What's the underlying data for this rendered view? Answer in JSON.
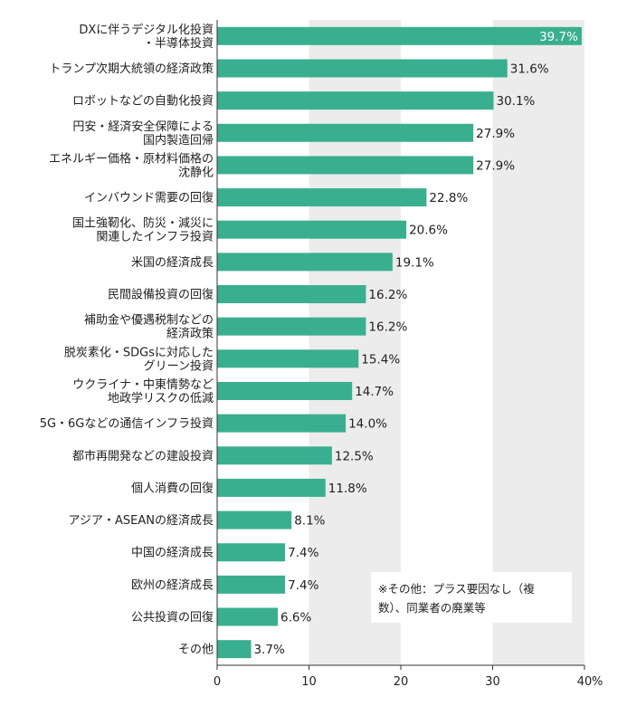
{
  "chart_data": {
    "type": "bar",
    "orientation": "horizontal",
    "categories": [
      [
        "DXに伴うデジタル化投資",
        "・半導体投資"
      ],
      [
        "トランプ次期大統領の経済政策"
      ],
      [
        "ロボットなどの自動化投資"
      ],
      [
        "円安・経済安全保障による",
        "国内製造回帰"
      ],
      [
        "エネルギー価格・原材料価格の",
        "沈静化"
      ],
      [
        "インバウンド需要の回復"
      ],
      [
        "国土強靭化、防災・減災に",
        "関連したインフラ投資"
      ],
      [
        "米国の経済成長"
      ],
      [
        "民間設備投資の回復"
      ],
      [
        "補助金や優遇税制などの",
        "経済政策"
      ],
      [
        "脱炭素化・SDGsに対応した",
        "グリーン投資"
      ],
      [
        "ウクライナ・中東情勢など",
        "地政学リスクの低減"
      ],
      [
        "5G・6Gなどの通信インフラ投資"
      ],
      [
        "都市再開発などの建設投資"
      ],
      [
        "個人消費の回復"
      ],
      [
        "アジア・ASEANの経済成長"
      ],
      [
        "中国の経済成長"
      ],
      [
        "欧州の経済成長"
      ],
      [
        "公共投資の回復"
      ],
      [
        "その他"
      ]
    ],
    "values": [
      39.7,
      31.6,
      30.1,
      27.9,
      27.9,
      22.8,
      20.6,
      19.1,
      16.2,
      16.2,
      15.4,
      14.7,
      14.0,
      12.5,
      11.8,
      8.1,
      7.4,
      7.4,
      6.6,
      3.7
    ],
    "value_labels": [
      "39.7%",
      "31.6%",
      "30.1%",
      "27.9%",
      "27.9%",
      "22.8%",
      "20.6%",
      "19.1%",
      "16.2%",
      "16.2%",
      "15.4%",
      "14.7%",
      "14.0%",
      "12.5%",
      "11.8%",
      "8.1%",
      "7.4%",
      "7.4%",
      "6.6%",
      "3.7%"
    ],
    "xlim": [
      0,
      40
    ],
    "x_ticks": [
      "0",
      "10",
      "20",
      "30",
      "40"
    ],
    "x_unit": "%",
    "bar_color": "#3aaf8f",
    "band_color": "#ececec",
    "note_lines": [
      "※その他：プラス要因なし（複",
      "数）、同業者の廃業等"
    ]
  }
}
